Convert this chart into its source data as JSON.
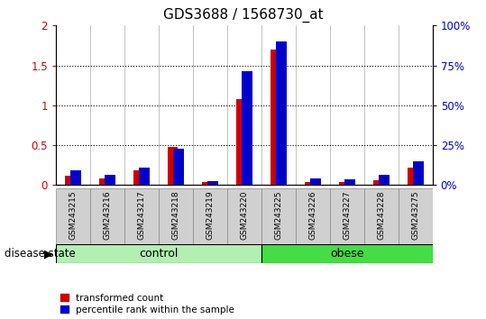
{
  "title": "GDS3688 / 1568730_at",
  "samples": [
    "GSM243215",
    "GSM243216",
    "GSM243217",
    "GSM243218",
    "GSM243219",
    "GSM243220",
    "GSM243225",
    "GSM243226",
    "GSM243227",
    "GSM243228",
    "GSM243275"
  ],
  "red_values": [
    0.12,
    0.08,
    0.18,
    0.48,
    0.04,
    1.08,
    1.7,
    0.04,
    0.04,
    0.06,
    0.22
  ],
  "blue_values_pct": [
    9.5,
    6.5,
    11.0,
    23.0,
    2.5,
    71.5,
    90.0,
    4.0,
    3.5,
    6.5,
    15.0
  ],
  "left_ylim": [
    0,
    2.0
  ],
  "right_ylim": [
    0,
    100
  ],
  "left_yticks": [
    0,
    0.5,
    1.0,
    1.5,
    2.0
  ],
  "right_yticks": [
    0,
    25,
    50,
    75,
    100
  ],
  "left_yticklabels": [
    "0",
    "0.5",
    "1",
    "1.5",
    "2"
  ],
  "right_yticklabels": [
    "0%",
    "25%",
    "50%",
    "75%",
    "100%"
  ],
  "n_control": 6,
  "n_obese": 5,
  "control_color": "#b2f0b2",
  "obese_color": "#44dd44",
  "label_bg_color": "#d0d0d0",
  "red_color": "#cc0000",
  "blue_color": "#0000cc",
  "bar_width": 0.3,
  "disease_state_label": "disease state",
  "control_label": "control",
  "obese_label": "obese",
  "legend_red": "transformed count",
  "legend_blue": "percentile rank within the sample",
  "dotted_lines": [
    0.5,
    1.0,
    1.5
  ]
}
